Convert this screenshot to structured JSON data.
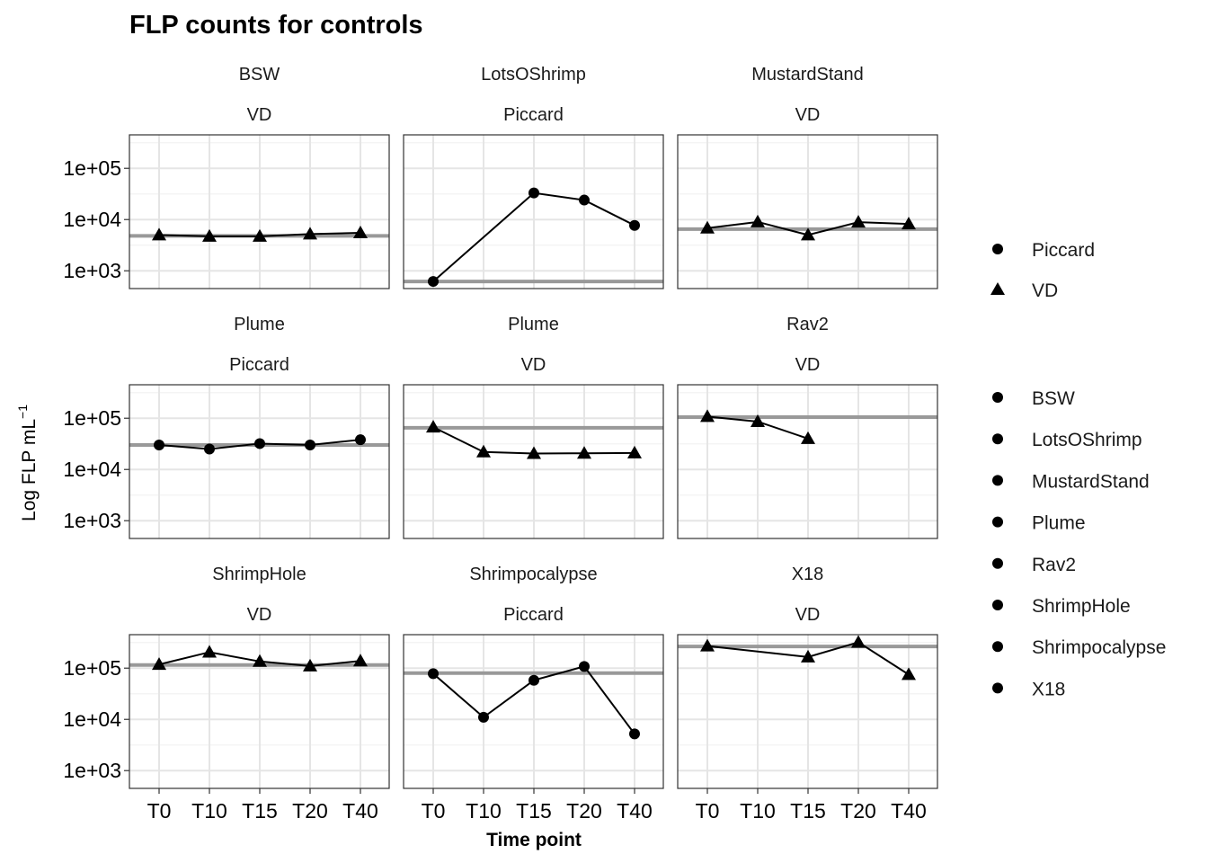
{
  "chart_data": {
    "type": "line",
    "title": "FLP counts for controls",
    "xlabel": "Time point",
    "ylabel": "Log FLP  mL",
    "ylabel_superscript": "−1",
    "y_scale": "log10",
    "ylim": [
      450,
      450000
    ],
    "y_ticks": [
      1000,
      10000,
      100000
    ],
    "y_tick_labels": [
      "1e+03",
      "1e+04",
      "1e+05"
    ],
    "categories": [
      "T0",
      "T10",
      "T15",
      "T20",
      "T40"
    ],
    "grid": true,
    "legend_position": "right",
    "legends": [
      {
        "entries": [
          {
            "label": "Piccard",
            "shape": "circle"
          },
          {
            "label": "VD",
            "shape": "triangle"
          }
        ]
      },
      {
        "entries": [
          {
            "label": "BSW",
            "shape": "circle"
          },
          {
            "label": "LotsOShrimp",
            "shape": "circle"
          },
          {
            "label": "MustardStand",
            "shape": "circle"
          },
          {
            "label": "Plume",
            "shape": "circle"
          },
          {
            "label": "Rav2",
            "shape": "circle"
          },
          {
            "label": "ShrimpHole",
            "shape": "circle"
          },
          {
            "label": "Shrimpocalypse",
            "shape": "circle"
          },
          {
            "label": "X18",
            "shape": "circle"
          }
        ]
      }
    ],
    "facets": [
      {
        "site": "BSW",
        "instrument": "VD",
        "shape": "triangle",
        "reference": 4800,
        "values": [
          5000,
          4700,
          4700,
          5200,
          5500
        ]
      },
      {
        "site": "LotsOShrimp",
        "instrument": "Piccard",
        "shape": "circle",
        "reference": 620,
        "values": [
          620,
          null,
          33000,
          24000,
          7700
        ]
      },
      {
        "site": "MustardStand",
        "instrument": "VD",
        "shape": "triangle",
        "reference": 6500,
        "values": [
          6800,
          9000,
          5000,
          8900,
          8200
        ]
      },
      {
        "site": "Plume",
        "instrument": "Piccard",
        "shape": "circle",
        "reference": 30000,
        "values": [
          30000,
          25000,
          32000,
          30000,
          38000
        ]
      },
      {
        "site": "Plume",
        "instrument": "VD",
        "shape": "triangle",
        "reference": 65000,
        "values": [
          67000,
          22000,
          20500,
          20700,
          21000
        ]
      },
      {
        "site": "Rav2",
        "instrument": "VD",
        "shape": "triangle",
        "reference": 105000,
        "values": [
          108000,
          86000,
          40000,
          null,
          null
        ]
      },
      {
        "site": "ShrimpHole",
        "instrument": "VD",
        "shape": "triangle",
        "reference": 115000,
        "values": [
          118000,
          205000,
          135000,
          110000,
          138000
        ]
      },
      {
        "site": "Shrimpocalypse",
        "instrument": "Piccard",
        "shape": "circle",
        "reference": 80000,
        "values": [
          78000,
          11000,
          58000,
          108000,
          5200
        ]
      },
      {
        "site": "X18",
        "instrument": "VD",
        "shape": "triangle",
        "reference": 265000,
        "values": [
          270000,
          null,
          165000,
          320000,
          75000
        ]
      }
    ]
  }
}
